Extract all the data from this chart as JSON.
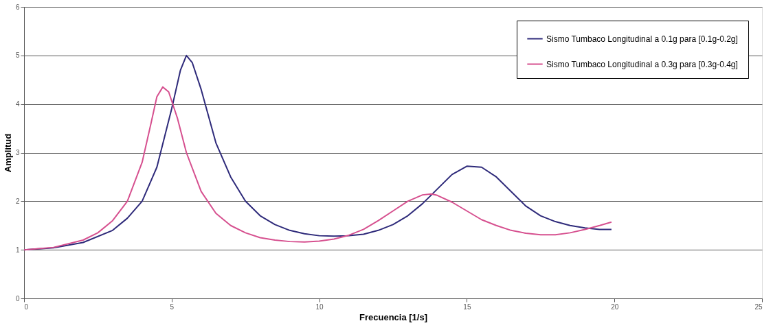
{
  "chart_data": {
    "type": "line",
    "xlabel": "Frecuencia [1/s]",
    "ylabel": "Amplitud",
    "xlim": [
      0,
      25
    ],
    "xticks": [
      0,
      5,
      10,
      15,
      20,
      25
    ],
    "ylim": [
      0,
      6
    ],
    "yticks": [
      0,
      1,
      2,
      3,
      4,
      5,
      6
    ],
    "grid": "y",
    "legend": "top right",
    "marker": "none",
    "line_style": "solid",
    "series": [
      {
        "name": "Sismo Tumbaco Longitudinal a 0.1g para [0.1g-0.2g]",
        "color": "#2e2a7a",
        "x": [
          0,
          1,
          2,
          3,
          3.5,
          4,
          4.5,
          5,
          5.3,
          5.5,
          5.7,
          6,
          6.5,
          7,
          7.5,
          8,
          8.5,
          9,
          9.5,
          10,
          10.5,
          11,
          11.5,
          12,
          12.5,
          13,
          13.5,
          14,
          14.5,
          15,
          15.5,
          16,
          16.5,
          17,
          17.5,
          18,
          18.5,
          19,
          19.5,
          19.9
        ],
        "values": [
          1,
          1.04,
          1.15,
          1.4,
          1.65,
          2.0,
          2.7,
          3.9,
          4.7,
          5.0,
          4.85,
          4.3,
          3.2,
          2.5,
          2.0,
          1.7,
          1.52,
          1.4,
          1.33,
          1.29,
          1.28,
          1.29,
          1.32,
          1.4,
          1.52,
          1.7,
          1.95,
          2.25,
          2.55,
          2.72,
          2.7,
          2.5,
          2.2,
          1.9,
          1.7,
          1.58,
          1.5,
          1.45,
          1.42,
          1.42
        ]
      },
      {
        "name": "Sismo Tumbaco Longitudinal a 0.3g para [0.3g-0.4g]",
        "color": "#d6508f",
        "x": [
          0,
          1,
          2,
          2.5,
          3,
          3.5,
          4,
          4.3,
          4.5,
          4.7,
          4.9,
          5.2,
          5.5,
          6,
          6.5,
          7,
          7.5,
          8,
          8.5,
          9,
          9.5,
          10,
          10.5,
          11,
          11.5,
          12,
          12.5,
          13,
          13.5,
          13.8,
          14,
          14.5,
          15,
          15.5,
          16,
          16.5,
          17,
          17.5,
          18,
          18.5,
          19,
          19.5,
          19.9
        ],
        "values": [
          1,
          1.05,
          1.2,
          1.35,
          1.6,
          2.0,
          2.8,
          3.6,
          4.15,
          4.35,
          4.25,
          3.7,
          3.0,
          2.2,
          1.75,
          1.5,
          1.35,
          1.25,
          1.2,
          1.17,
          1.16,
          1.18,
          1.22,
          1.3,
          1.42,
          1.6,
          1.8,
          2.0,
          2.13,
          2.15,
          2.12,
          1.98,
          1.8,
          1.62,
          1.5,
          1.4,
          1.34,
          1.31,
          1.31,
          1.35,
          1.42,
          1.5,
          1.57
        ]
      }
    ]
  }
}
